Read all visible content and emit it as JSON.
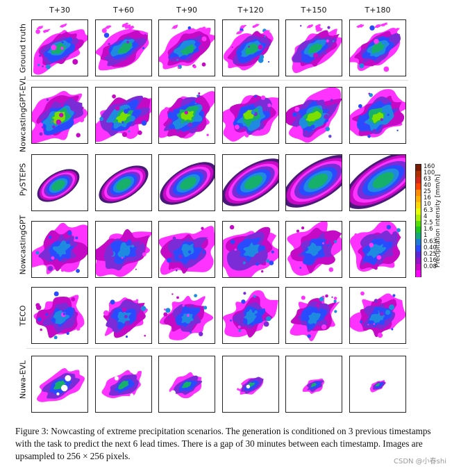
{
  "figure": {
    "columns": [
      "T+30",
      "T+60",
      "T+90",
      "T+120",
      "T+150",
      "T+180"
    ],
    "rows": [
      "Ground truth",
      "NowcastingGPT-EVL",
      "PySTEPS",
      "NowcastingGPT",
      "TECO",
      "Nuwa-EVL"
    ],
    "colorbar": {
      "title": "Precipitation intensity [mm/h]",
      "ticks": [
        "160",
        "100",
        "63",
        "40",
        "25",
        "16",
        "10",
        "6.3",
        "4",
        "2.5",
        "1.6",
        "1",
        "0.63",
        "0.40",
        "0.25",
        "0.16",
        "0.08"
      ],
      "colors": [
        "#7a1a00",
        "#b03000",
        "#d62818",
        "#ff4400",
        "#ff8c00",
        "#ffb000",
        "#ffd700",
        "#e8ff00",
        "#aaf000",
        "#55e000",
        "#1ec71e",
        "#12a87a",
        "#1e7ad2",
        "#2a4aff",
        "#5a28d8",
        "#9612c8",
        "#c80ac8",
        "#ff00ff"
      ]
    }
  },
  "caption": {
    "label": "Figure 3:",
    "text": "Nowcasting of extreme precipitation scenarios. The generation is conditioned on 3 previous timestamps with the task to predict the next 6 lead times. There is a gap of 30 minutes between each timestamp. Images are upsampled to 256 × 256 pixels."
  },
  "watermark": "CSDN @小春shi"
}
